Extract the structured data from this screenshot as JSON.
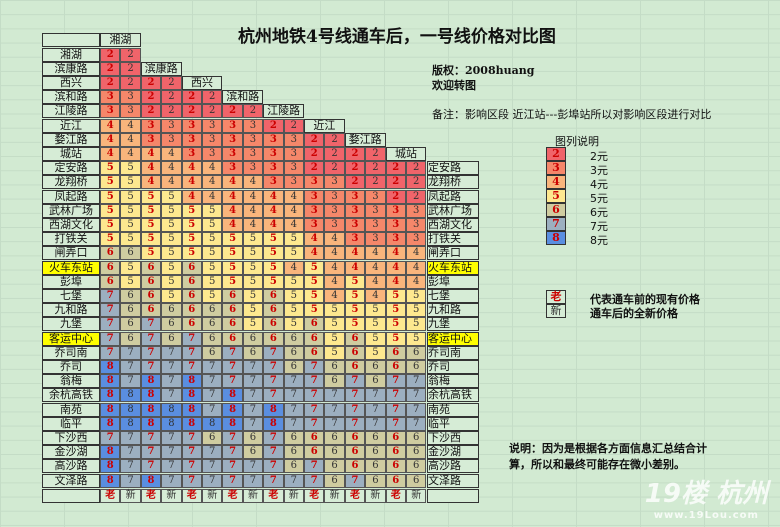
{
  "title": "杭州地铁4号线通车后，一号线价格对比图",
  "copyright": "版权：2008huang",
  "welcome": "欢迎转图",
  "note": "备注：影响区段 近江站---彭埠站所以对影响区段进行对比",
  "legend": {
    "title": "图列说明",
    "items": [
      {
        "v": "2",
        "label": "2元",
        "color": "#f0646a"
      },
      {
        "v": "3",
        "label": "3元",
        "color": "#f5876a"
      },
      {
        "v": "4",
        "label": "4元",
        "color": "#f9b57c"
      },
      {
        "v": "5",
        "label": "5元",
        "color": "#fde88f"
      },
      {
        "v": "6",
        "label": "6元",
        "color": "#cfcca0"
      },
      {
        "v": "7",
        "label": "7元",
        "color": "#9cafc0"
      },
      {
        "v": "8",
        "label": "8元",
        "color": "#5a8ee0"
      }
    ]
  },
  "old_label": "老",
  "new_label": "新",
  "old_desc": "代表通车前的现有价格",
  "new_desc": "通车后的全新价格",
  "explain1": "说明：因为是根据各方面信息汇总结合计",
  "explain2": "算，所以和最终可能存在微小差别。",
  "watermark": {
    "logo": "19楼 杭州",
    "url": "www.19Lou.com"
  },
  "highlight": [
    "火车东站",
    "客运中心"
  ],
  "col_stations": [
    "湘湖",
    "滨康路",
    "西兴",
    "滨和路",
    "江陵路",
    "近江",
    "婺江路",
    "城站"
  ],
  "rows": [
    {
      "s": "湘湖",
      "v": [
        2,
        2
      ]
    },
    {
      "s": "滨康路",
      "v": [
        2,
        2
      ]
    },
    {
      "s": "西兴",
      "v": [
        2,
        2,
        2,
        2
      ]
    },
    {
      "s": "滨和路",
      "v": [
        3,
        3,
        2,
        2,
        2,
        2
      ]
    },
    {
      "s": "江陵路",
      "v": [
        3,
        3,
        2,
        2,
        2,
        2,
        2,
        2
      ]
    },
    {
      "s": "近江",
      "v": [
        4,
        4,
        3,
        3,
        3,
        3,
        3,
        3,
        2,
        2
      ]
    },
    {
      "s": "婺江路",
      "v": [
        4,
        4,
        3,
        3,
        3,
        3,
        3,
        3,
        3,
        3,
        2,
        2
      ]
    },
    {
      "s": "城站",
      "v": [
        4,
        4,
        4,
        4,
        3,
        3,
        3,
        3,
        3,
        3,
        2,
        2,
        2,
        2
      ]
    },
    {
      "s": "定安路",
      "v": [
        5,
        5,
        4,
        4,
        4,
        4,
        3,
        3,
        3,
        3,
        2,
        2,
        2,
        2,
        2,
        2
      ]
    },
    {
      "s": "龙翔桥",
      "v": [
        5,
        5,
        4,
        4,
        4,
        4,
        4,
        4,
        3,
        3,
        3,
        3,
        2,
        2,
        2,
        2
      ]
    },
    {
      "s": "凤起路",
      "v": [
        5,
        5,
        5,
        5,
        4,
        4,
        4,
        4,
        4,
        4,
        3,
        3,
        3,
        3,
        2,
        2
      ]
    },
    {
      "s": "武林广场",
      "v": [
        5,
        5,
        5,
        5,
        5,
        5,
        4,
        4,
        4,
        4,
        3,
        3,
        3,
        3,
        3,
        3
      ]
    },
    {
      "s": "西湖文化",
      "v": [
        5,
        5,
        5,
        5,
        5,
        5,
        4,
        4,
        4,
        4,
        3,
        3,
        3,
        3,
        3,
        3
      ]
    },
    {
      "s": "打铁关",
      "v": [
        5,
        5,
        5,
        5,
        5,
        5,
        5,
        5,
        5,
        5,
        4,
        4,
        3,
        3,
        3,
        3
      ]
    },
    {
      "s": "闸弄口",
      "v": [
        6,
        6,
        5,
        5,
        5,
        5,
        5,
        5,
        5,
        5,
        4,
        4,
        4,
        4,
        4,
        4
      ]
    },
    {
      "s": "火车东站",
      "v": [
        6,
        5,
        6,
        5,
        6,
        5,
        5,
        5,
        5,
        4,
        5,
        4,
        4,
        4,
        4,
        4
      ]
    },
    {
      "s": "彭埠",
      "v": [
        6,
        5,
        6,
        5,
        6,
        5,
        5,
        5,
        5,
        5,
        5,
        4,
        5,
        4,
        4,
        4
      ]
    },
    {
      "s": "七堡",
      "v": [
        7,
        6,
        6,
        5,
        6,
        5,
        6,
        5,
        6,
        5,
        5,
        4,
        5,
        4,
        5,
        5
      ]
    },
    {
      "s": "九和路",
      "v": [
        7,
        6,
        6,
        6,
        6,
        6,
        6,
        5,
        6,
        5,
        5,
        5,
        5,
        5,
        5,
        5
      ]
    },
    {
      "s": "九堡",
      "v": [
        7,
        6,
        7,
        6,
        6,
        6,
        6,
        5,
        6,
        5,
        6,
        5,
        5,
        5,
        5,
        5
      ]
    },
    {
      "s": "客运中心",
      "v": [
        7,
        6,
        7,
        6,
        7,
        6,
        6,
        6,
        6,
        6,
        6,
        5,
        6,
        5,
        5,
        5
      ]
    },
    {
      "s": "乔司南",
      "v": [
        7,
        7,
        7,
        7,
        7,
        6,
        7,
        6,
        7,
        6,
        6,
        5,
        6,
        5,
        6,
        6
      ]
    },
    {
      "s": "乔司",
      "v": [
        8,
        7,
        7,
        7,
        7,
        7,
        7,
        7,
        7,
        6,
        7,
        6,
        6,
        6,
        6,
        6
      ]
    },
    {
      "s": "翁梅",
      "v": [
        8,
        7,
        8,
        7,
        8,
        7,
        7,
        7,
        7,
        7,
        7,
        6,
        7,
        6,
        7,
        7
      ]
    },
    {
      "s": "余杭高铁",
      "v": [
        8,
        8,
        8,
        7,
        8,
        7,
        8,
        7,
        7,
        7,
        7,
        7,
        7,
        7,
        7,
        7
      ]
    },
    {
      "s": "南苑",
      "v": [
        8,
        8,
        8,
        8,
        8,
        7,
        8,
        7,
        8,
        7,
        7,
        7,
        7,
        7,
        7,
        7
      ]
    },
    {
      "s": "临平",
      "v": [
        8,
        8,
        8,
        8,
        8,
        8,
        8,
        7,
        8,
        7,
        7,
        7,
        7,
        7,
        7,
        7
      ]
    },
    {
      "s": "下沙西",
      "v": [
        7,
        7,
        7,
        7,
        7,
        6,
        7,
        6,
        7,
        6,
        6,
        6,
        6,
        6,
        6,
        6
      ]
    },
    {
      "s": "金沙湖",
      "v": [
        8,
        7,
        7,
        7,
        7,
        7,
        7,
        6,
        7,
        6,
        6,
        6,
        6,
        6,
        6,
        6
      ]
    },
    {
      "s": "高沙路",
      "v": [
        8,
        7,
        7,
        7,
        7,
        7,
        7,
        7,
        7,
        6,
        7,
        6,
        6,
        6,
        6,
        6
      ]
    },
    {
      "s": "文泽路",
      "v": [
        8,
        7,
        8,
        7,
        7,
        7,
        7,
        7,
        7,
        7,
        7,
        6,
        7,
        6,
        6,
        6
      ]
    }
  ]
}
